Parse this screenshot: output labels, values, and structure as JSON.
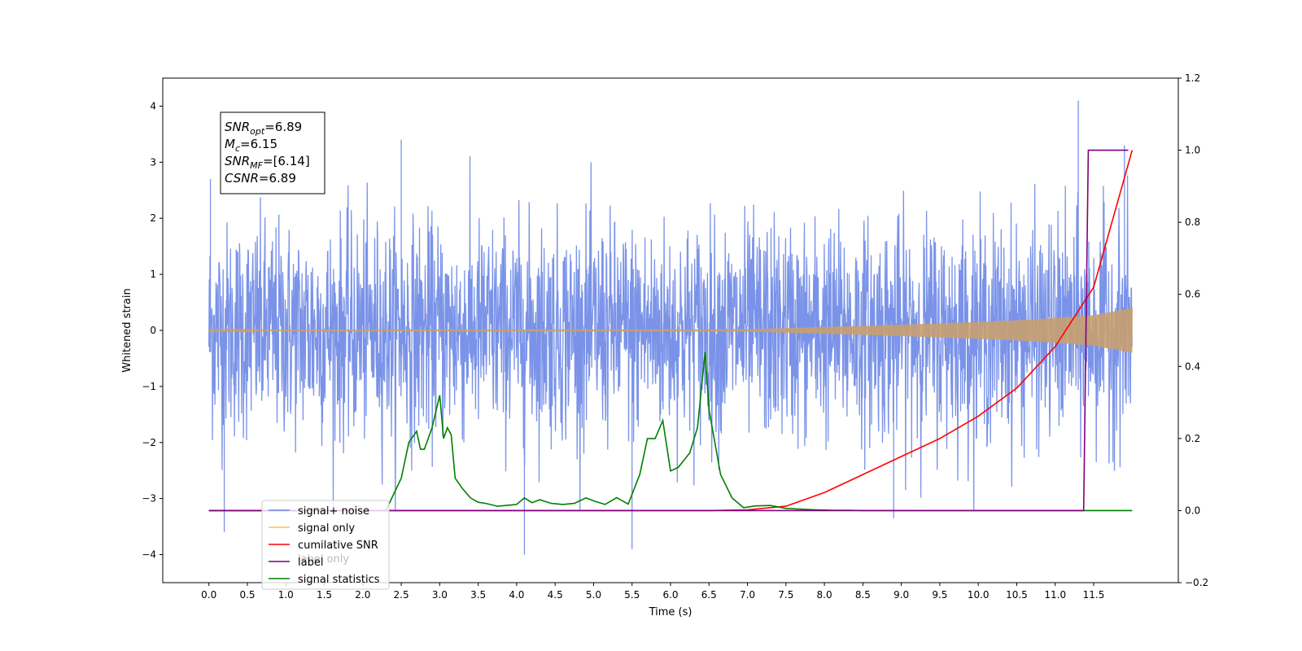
{
  "chart_data": {
    "type": "line",
    "xlabel": "Time (s)",
    "ylabel": "Whitened strain",
    "ylabel_right": "",
    "xlim": [
      -0.6,
      12.6
    ],
    "ylim": [
      -4.5,
      4.5
    ],
    "ylim_right": [
      -0.2,
      1.2
    ],
    "x_ticks": [
      "0.0",
      "0.5",
      "1.0",
      "1.5",
      "2.0",
      "2.5",
      "3.0",
      "3.5",
      "4.0",
      "4.5",
      "5.0",
      "5.5",
      "6.0",
      "6.5",
      "7.0",
      "7.5",
      "8.0",
      "8.5",
      "9.0",
      "9.5",
      "10.0",
      "10.5",
      "11.0",
      "11.5"
    ],
    "y_ticks_left": [
      "4",
      "3",
      "2",
      "1",
      "0",
      "−1",
      "−2",
      "−3",
      "−4"
    ],
    "y_ticks_right": [
      "1.2",
      "1.0",
      "0.8",
      "0.6",
      "0.4",
      "0.2",
      "0.0",
      "−0.2"
    ],
    "annotation": [
      {
        "main": "SNR",
        "sub": "opt",
        "rest": "=6.89"
      },
      {
        "main": "M",
        "sub": "c",
        "rest": "=6.15"
      },
      {
        "main": "SNR",
        "sub": "MF",
        "rest": "=[6.14]"
      },
      {
        "main": "CSNR",
        "sub": "",
        "rest": "=6.89"
      }
    ],
    "legend": {
      "placement": "lower-left",
      "entries": [
        {
          "label": "signal+ noise",
          "color": "#6b87e6"
        },
        {
          "label": "signal only",
          "color": "#ffc04d"
        },
        {
          "label": "cumilative SNR",
          "color": "#ff0000"
        },
        {
          "label": "label",
          "color": "#800080"
        },
        {
          "label": "signal statistics",
          "color": "#008000"
        }
      ]
    },
    "hidden_legend_text": "label only",
    "series": [
      {
        "name": "signal+ noise",
        "axis": "left",
        "color": "#6b87e6",
        "x_range": [
          0.0,
          12.0
        ],
        "noise_std": 0.95,
        "notable_peaks": [
          [
            0.02,
            2.7
          ],
          [
            0.2,
            -3.6
          ],
          [
            2.5,
            3.4
          ],
          [
            4.1,
            -4.0
          ],
          [
            5.5,
            -3.9
          ],
          [
            8.9,
            -3.35
          ],
          [
            11.3,
            4.1
          ],
          [
            11.9,
            3.3
          ]
        ]
      },
      {
        "name": "signal only",
        "axis": "left",
        "color": "#ffc04d",
        "amplitude_envelope": [
          [
            0,
            0.01
          ],
          [
            7.0,
            0.02
          ],
          [
            8.0,
            0.06
          ],
          [
            9.0,
            0.1
          ],
          [
            10.0,
            0.15
          ],
          [
            10.5,
            0.18
          ],
          [
            11.0,
            0.22
          ],
          [
            11.5,
            0.27
          ],
          [
            12.0,
            0.4
          ]
        ]
      },
      {
        "name": "cumilative SNR",
        "axis": "right",
        "color": "#ff0000",
        "x": [
          0.0,
          6.5,
          7.0,
          7.5,
          8.0,
          8.5,
          9.0,
          9.5,
          10.0,
          10.5,
          11.0,
          11.5,
          12.0
        ],
        "y": [
          0.0,
          0.0,
          0.002,
          0.012,
          0.05,
          0.1,
          0.15,
          0.2,
          0.262,
          0.34,
          0.455,
          0.62,
          1.0
        ]
      },
      {
        "name": "label",
        "axis": "right",
        "color": "#800080",
        "x": [
          0.0,
          11.37,
          11.43,
          11.95
        ],
        "y": [
          0.0,
          0.0,
          1.0,
          1.0
        ]
      },
      {
        "name": "signal statistics",
        "axis": "right",
        "color": "#008000",
        "x": [
          0.0,
          2.3,
          2.5,
          2.6,
          2.7,
          2.75,
          2.8,
          2.9,
          3.0,
          3.05,
          3.1,
          3.15,
          3.2,
          3.3,
          3.4,
          3.5,
          3.6,
          3.75,
          3.9,
          4.0,
          4.1,
          4.2,
          4.3,
          4.45,
          4.6,
          4.75,
          4.9,
          5.0,
          5.15,
          5.3,
          5.45,
          5.6,
          5.7,
          5.8,
          5.9,
          6.0,
          6.1,
          6.25,
          6.35,
          6.45,
          6.5,
          6.55,
          6.65,
          6.8,
          6.95,
          7.1,
          7.3,
          7.5,
          7.7,
          7.9,
          8.1,
          8.3,
          8.5,
          12.0
        ],
        "y": [
          0.0,
          0.0,
          0.09,
          0.19,
          0.22,
          0.17,
          0.17,
          0.23,
          0.32,
          0.2,
          0.23,
          0.21,
          0.09,
          0.06,
          0.035,
          0.023,
          0.02,
          0.012,
          0.015,
          0.017,
          0.035,
          0.022,
          0.03,
          0.02,
          0.017,
          0.02,
          0.035,
          0.027,
          0.017,
          0.036,
          0.018,
          0.1,
          0.2,
          0.2,
          0.25,
          0.11,
          0.12,
          0.16,
          0.23,
          0.44,
          0.28,
          0.22,
          0.1,
          0.035,
          0.008,
          0.013,
          0.014,
          0.006,
          0.004,
          0.002,
          0.001,
          0.001,
          0.0,
          0.0
        ]
      }
    ]
  }
}
